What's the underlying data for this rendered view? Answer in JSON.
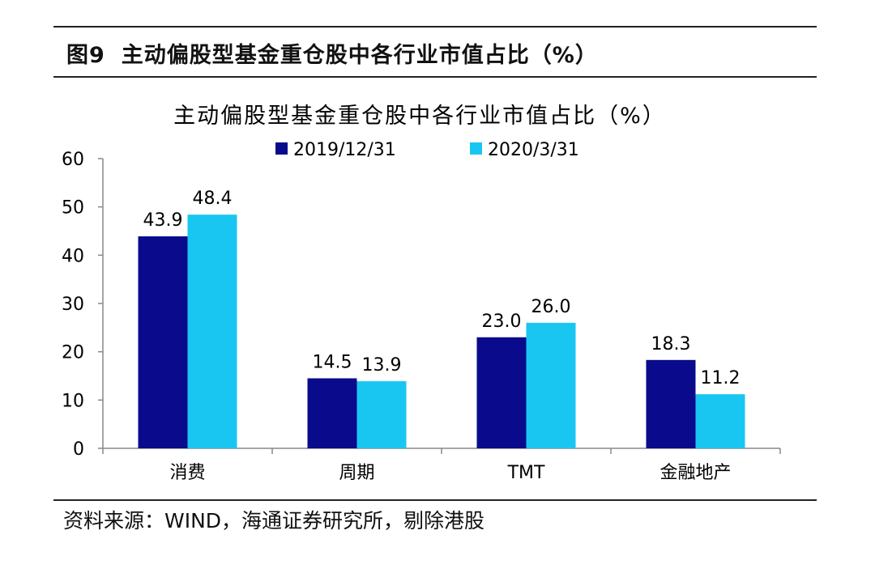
{
  "figure": {
    "label": "图9",
    "title": "主动偏股型基金重仓股中各行业市值占比（%）",
    "source": "资料来源：WIND，海通证券研究所，剔除港股"
  },
  "chart_data": {
    "type": "bar",
    "title": "主动偏股型基金重仓股中各行业市值占比（%）",
    "categories": [
      "消费",
      "周期",
      "TMT",
      "金融地产"
    ],
    "series": [
      {
        "name": "2019/12/31",
        "values": [
          43.9,
          14.5,
          23.0,
          18.3
        ],
        "color": "#0a0a8c"
      },
      {
        "name": "2020/3/31",
        "values": [
          48.4,
          13.9,
          26.0,
          11.2
        ],
        "color": "#19c6f2"
      }
    ],
    "data_labels": [
      [
        "43.9",
        "14.5",
        "23.0",
        "18.3"
      ],
      [
        "48.4",
        "13.9",
        "26.0",
        "11.2"
      ]
    ],
    "ylim": [
      0,
      60
    ],
    "yticks": [
      "0",
      "10",
      "20",
      "30",
      "40",
      "50",
      "60"
    ],
    "xlabel": "",
    "ylabel": "",
    "grid": false,
    "legend_position": "top-center"
  }
}
